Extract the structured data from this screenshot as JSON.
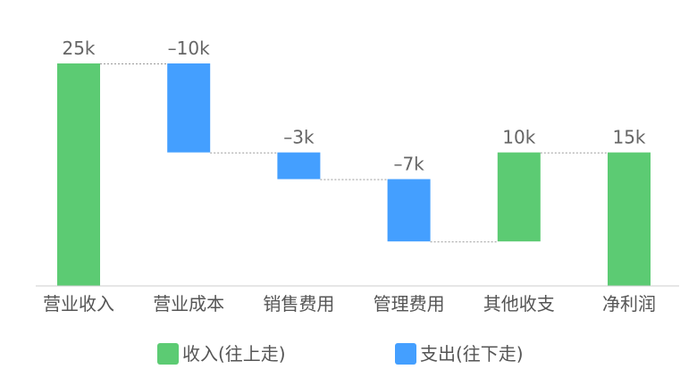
{
  "chart_data": {
    "type": "bar",
    "subtype": "waterfall",
    "categories": [
      "营业收入",
      "营业成本",
      "销售费用",
      "管理费用",
      "其他收支",
      "净利润"
    ],
    "values": [
      25,
      -10,
      -3,
      -7,
      10,
      15
    ],
    "value_labels": [
      "25k",
      "–10k",
      "–3k",
      "–7k",
      "10k",
      "15k"
    ],
    "total_flags": [
      true,
      false,
      false,
      false,
      false,
      true
    ],
    "unit": "k",
    "ylim": [
      0,
      25
    ],
    "grid": false,
    "legend_position": "bottom",
    "legend": [
      {
        "label": "收入(往上走)",
        "color": "#5CCB73"
      },
      {
        "label": "支出(往下走)",
        "color": "#449FFF"
      }
    ],
    "colors": {
      "income": "#5CCB73",
      "expense": "#449FFF"
    }
  }
}
